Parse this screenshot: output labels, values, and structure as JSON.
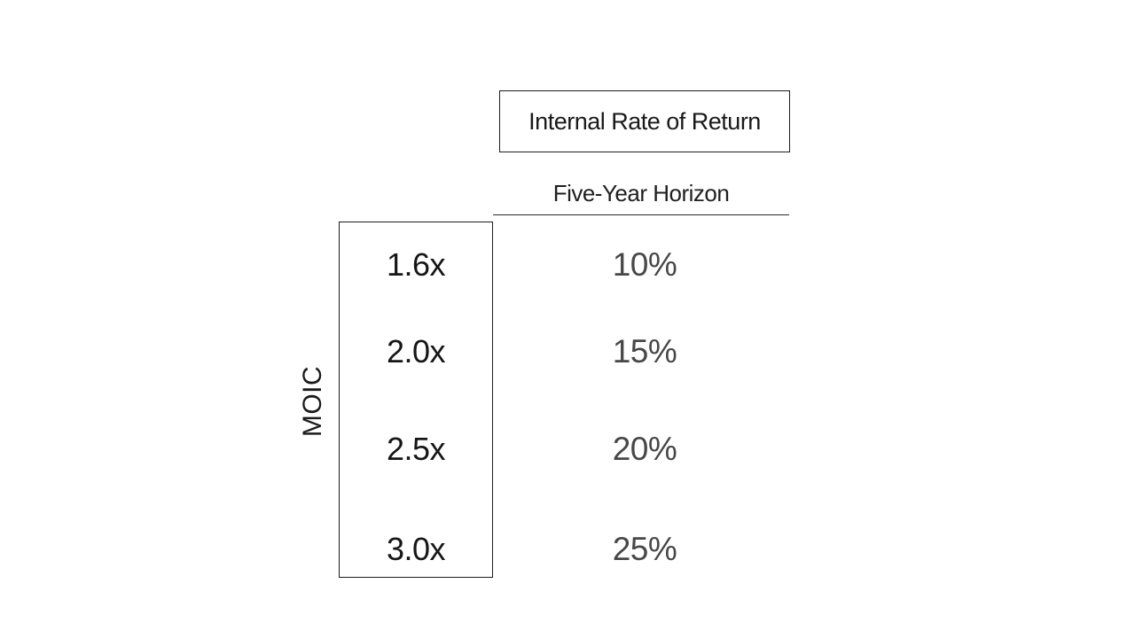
{
  "header": {
    "title": "Internal Rate of Return",
    "column_subtitle": "Five-Year Horizon"
  },
  "moic": {
    "axis_label": "MOIC",
    "values": [
      "1.6x",
      "2.0x",
      "2.5x",
      "3.0x"
    ]
  },
  "irr": {
    "values": [
      "10%",
      "15%",
      "20%",
      "25%"
    ]
  },
  "colors": {
    "background": "#ffffff",
    "border": "#1c1c1c",
    "text_primary": "#161616",
    "text_secondary": "#474747"
  },
  "chart_data": {
    "type": "table",
    "title": "Internal Rate of Return",
    "column_header": "Five-Year Horizon",
    "row_axis_label": "MOIC",
    "columns": [
      "MOIC",
      "IRR (Five-Year Horizon)"
    ],
    "rows": [
      [
        "1.6x",
        "10%"
      ],
      [
        "2.0x",
        "15%"
      ],
      [
        "2.5x",
        "20%"
      ],
      [
        "3.0x",
        "25%"
      ]
    ]
  }
}
